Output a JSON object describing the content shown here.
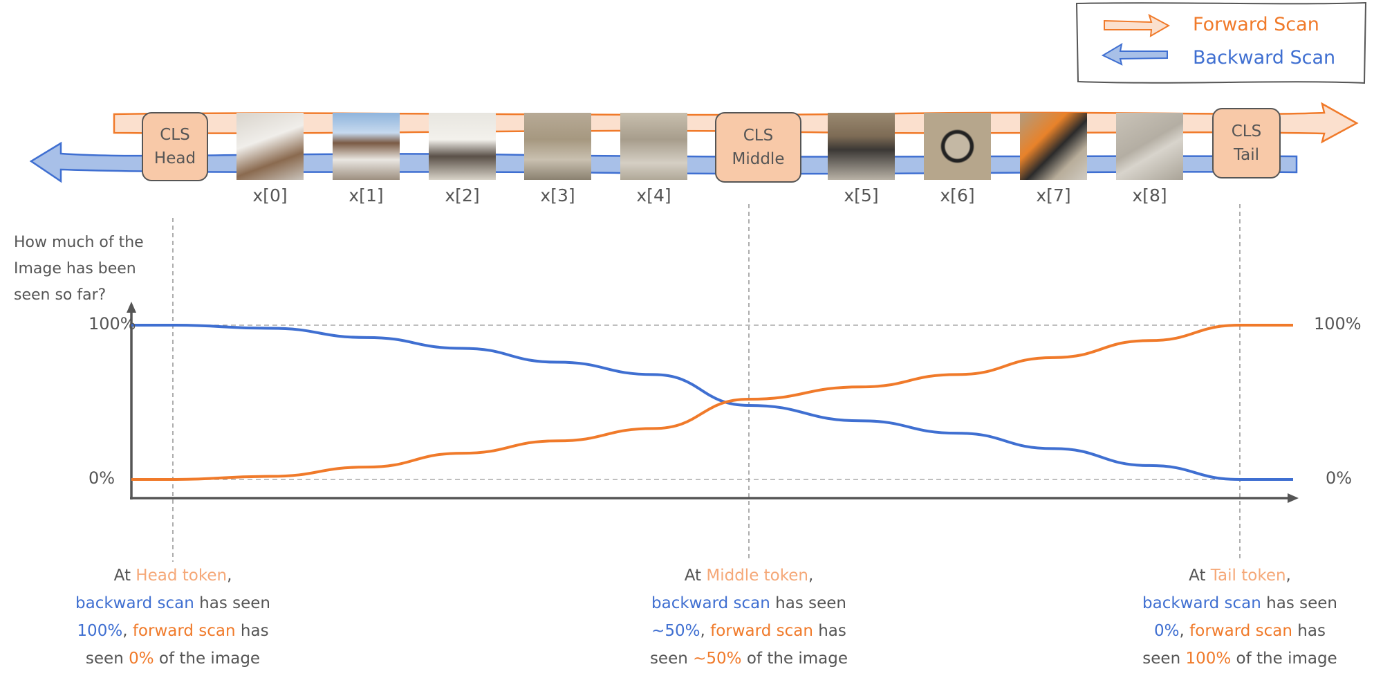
{
  "legend": {
    "forward": "Forward Scan",
    "backward": "Backward Scan"
  },
  "colors": {
    "forward": "#F07A2A",
    "forward_light": "#F8C9A8",
    "backward": "#3F6FD1",
    "backward_light": "#A8C0E8",
    "cls_fill": "#F8C9A8",
    "text": "#555555"
  },
  "tokens": {
    "cls_head": [
      "CLS",
      "Head"
    ],
    "cls_middle": [
      "CLS",
      "Middle"
    ],
    "cls_tail": [
      "CLS",
      "Tail"
    ],
    "patches": [
      {
        "label": "x[0]",
        "image": "building-balcony-lamp"
      },
      {
        "label": "x[1]",
        "image": "houses-blue-sky"
      },
      {
        "label": "x[2]",
        "image": "town-hall-flags"
      },
      {
        "label": "x[3]",
        "image": "fountain"
      },
      {
        "label": "x[4]",
        "image": "fountain-chairs"
      },
      {
        "label": "x[5]",
        "image": "terrace-chairs"
      },
      {
        "label": "x[6]",
        "image": "bicycle-wheel"
      },
      {
        "label": "x[7]",
        "image": "orange-bicycle"
      },
      {
        "label": "x[8]",
        "image": "stone-pavement"
      }
    ]
  },
  "chart": {
    "ylabel": [
      "How much of the",
      "Image has been",
      "seen so far?"
    ],
    "ticks": {
      "top": "100%",
      "bottom": "0%"
    }
  },
  "chart_data": {
    "type": "line",
    "x": [
      "CLS Head",
      "x[0]",
      "x[1]",
      "x[2]",
      "x[3]",
      "x[4]",
      "CLS Middle",
      "x[5]",
      "x[6]",
      "x[7]",
      "x[8]",
      "CLS Tail"
    ],
    "ylim": [
      0,
      100
    ],
    "series": [
      {
        "name": "Backward Scan",
        "values": [
          100,
          98,
          92,
          85,
          76,
          68,
          48,
          38,
          30,
          20,
          9,
          0
        ]
      },
      {
        "name": "Forward Scan",
        "values": [
          0,
          2,
          8,
          17,
          25,
          33,
          52,
          60,
          68,
          79,
          90,
          100
        ]
      }
    ]
  },
  "notes": [
    {
      "l1a": "At ",
      "l1b": "Head token",
      "l1c": ",",
      "l2a": "backward scan",
      "l2b": " has seen",
      "l3a": "100%",
      "l3b": ", ",
      "l3c": "forward scan",
      "l3d": " has",
      "l4a": "seen ",
      "l4b": "0%",
      "l4c": " of the image"
    },
    {
      "l1a": "At ",
      "l1b": "Middle token",
      "l1c": ",",
      "l2a": "backward scan",
      "l2b": " has seen",
      "l3a": "~50%",
      "l3b": ", ",
      "l3c": "forward scan",
      "l3d": " has",
      "l4a": "seen ",
      "l4b": "~50%",
      "l4c": " of the image"
    },
    {
      "l1a": "At ",
      "l1b": "Tail token",
      "l1c": ",",
      "l2a": "backward scan",
      "l2b": " has seen",
      "l3a": "0%",
      "l3b": ", ",
      "l3c": "forward scan",
      "l3d": " has",
      "l4a": "seen ",
      "l4b": "100%",
      "l4c": " of the image"
    }
  ]
}
